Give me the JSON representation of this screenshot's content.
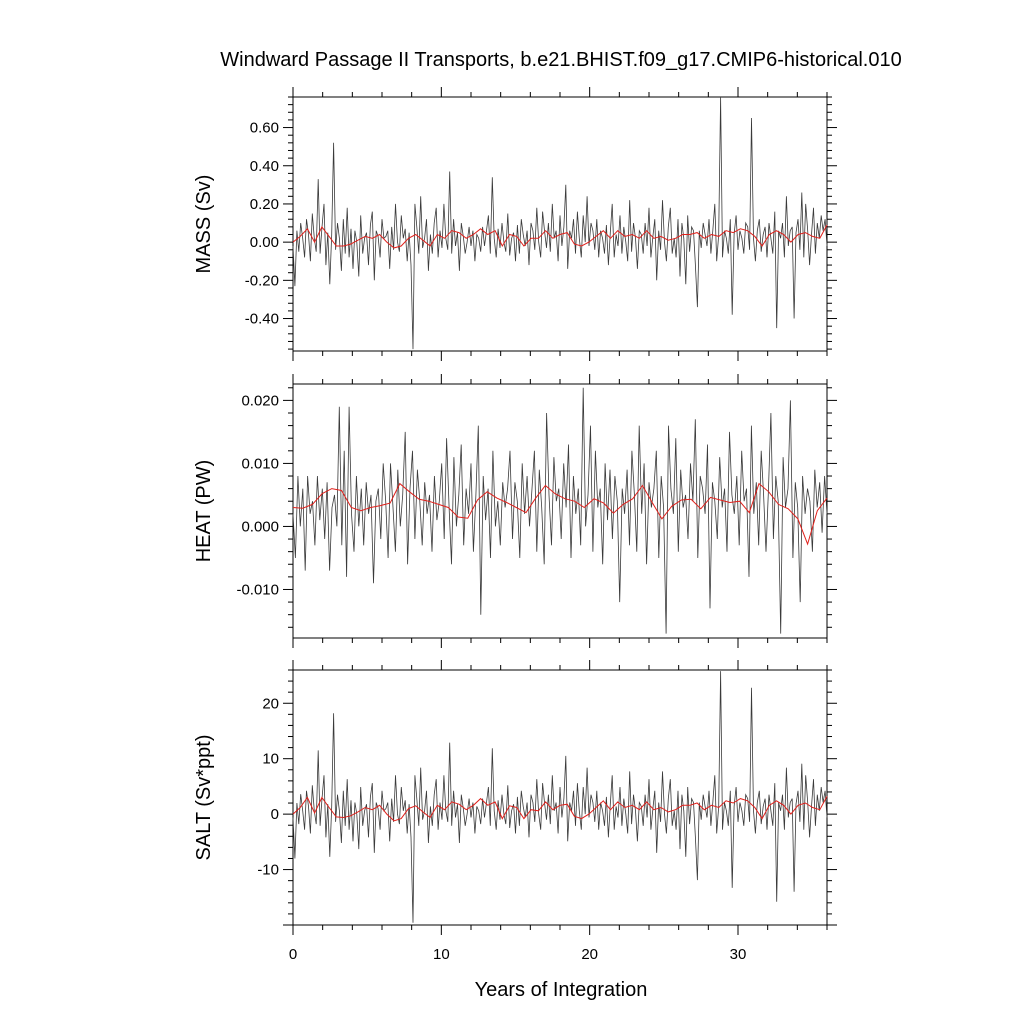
{
  "title": "Windward Passage II Transports, b.e21.BHIST.f09_g17.CMIP6-historical.010",
  "xlabel": "Years of Integration",
  "colors": {
    "raw": "#3a3a3a",
    "annual": "#e0201b",
    "axis": "#000000"
  },
  "chart_data": [
    {
      "type": "line",
      "ylabel": "MASS (Sv)",
      "xlim": [
        0,
        36
      ],
      "ylim": [
        -0.57,
        0.76
      ],
      "x_ticks": [
        "0",
        "10",
        "20",
        "30"
      ],
      "y_ticks": [
        "0.60",
        "0.40",
        "0.20",
        "0.00",
        "-0.20",
        "-0.40"
      ],
      "raw": [
        -0.02,
        -0.23,
        0.06,
        -0.05,
        0.1,
        0.02,
        -0.08,
        0.12,
        0.04,
        -0.1,
        0.15,
        0.02,
        -0.05,
        0.33,
        -0.06,
        0.08,
        0.2,
        -0.12,
        0.05,
        -0.22,
        0.04,
        0.52,
        -0.04,
        0.1,
        0.02,
        -0.15,
        0.12,
        -0.06,
        0.18,
        -0.08,
        0.07,
        -0.14,
        0.06,
        0.0,
        -0.18,
        0.14,
        -0.06,
        0.02,
        0.05,
        -0.12,
        0.09,
        0.16,
        -0.2,
        0.06,
        0.03,
        -0.08,
        0.12,
        0.02,
        0.03,
        0.06,
        -0.14,
        0.08,
        -0.04,
        0.2,
        0.0,
        -0.05,
        0.14,
        0.02,
        0.07,
        -0.1,
        0.05,
        -0.12,
        -0.56,
        0.2,
        0.08,
        -0.06,
        0.24,
        -0.03,
        0.02,
        0.12,
        -0.15,
        0.04,
        -0.06,
        0.1,
        0.18,
        -0.08,
        0.06,
        -0.03,
        0.2,
        0.02,
        -0.04,
        0.37,
        -0.06,
        0.12,
        -0.02,
        0.05,
        -0.15,
        0.1,
        0.03,
        -0.06,
        0.0,
        0.08,
        -0.02,
        0.06,
        -0.1,
        0.04,
        0.02,
        -0.05,
        0.08,
        -0.02,
        0.06,
        0.14,
        -0.06,
        0.34,
        0.02,
        -0.08,
        0.07,
        -0.03,
        0.1,
        0.0,
        -0.05,
        0.15,
        -0.07,
        0.02,
        0.05,
        -0.1,
        0.09,
        -0.06,
        0.12,
        0.04,
        -0.02,
        0.06,
        -0.12,
        0.1,
        0.06,
        -0.04,
        0.18,
        0.0,
        -0.08,
        0.16,
        0.06,
        -0.03,
        0.1,
        -0.05,
        0.2,
        0.02,
        0.06,
        -0.1,
        0.14,
        -0.02,
        0.08,
        0.3,
        -0.14,
        0.06,
        0.02,
        0.12,
        -0.06,
        0.16,
        0.02,
        -0.08,
        0.14,
        0.0,
        0.24,
        -0.02,
        0.1,
        0.06,
        -0.04,
        0.12,
        -0.08,
        0.06,
        0.02,
        -0.06,
        0.09,
        -0.12,
        0.05,
        0.2,
        -0.08,
        0.04,
        -0.02,
        0.14,
        -0.06,
        0.08,
        0.0,
        -0.1,
        0.22,
        -0.05,
        0.1,
        0.02,
        -0.14,
        0.06,
        0.04,
        -0.06,
        0.1,
        -0.02,
        0.18,
        -0.08,
        0.03,
        0.12,
        -0.2,
        0.06,
        -0.04,
        0.22,
        0.0,
        -0.1,
        0.08,
        0.18,
        -0.06,
        0.02,
        -0.08,
        0.12,
        -0.18,
        0.1,
        0.02,
        -0.22,
        0.14,
        -0.05,
        0.08,
        0.06,
        -0.12,
        -0.34,
        0.06,
        -0.03,
        0.1,
        0.04,
        -0.02,
        0.12,
        -0.06,
        0.06,
        0.2,
        -0.1,
        0.04,
        0.76,
        -0.08,
        0.06,
        0.02,
        -0.06,
        0.12,
        -0.38,
        0.04,
        0.14,
        -0.04,
        0.06,
        0.02,
        -0.06,
        0.1,
        0.08,
        -0.04,
        0.65,
        0.02,
        -0.1,
        0.06,
        0.12,
        -0.05,
        0.04,
        0.08,
        -0.08,
        0.1,
        0.02,
        -0.06,
        0.16,
        -0.45,
        0.06,
        0.02,
        0.1,
        -0.08,
        0.24,
        -0.02,
        0.06,
        0.08,
        -0.4,
        0.05,
        0.12,
        -0.04,
        0.26,
        -0.08,
        0.2,
        0.06,
        -0.12,
        0.04,
        0.18,
        -0.06,
        0.1,
        0.02,
        0.14,
        0.06,
        0.12,
        -0.02
      ],
      "annual": [
        0.0,
        0.03,
        0.07,
        0.0,
        0.08,
        0.03,
        -0.02,
        -0.02,
        -0.01,
        0.01,
        0.03,
        0.02,
        0.04,
        0.0,
        -0.03,
        -0.02,
        0.02,
        0.04,
        0.01,
        -0.02,
        0.04,
        0.02,
        0.06,
        0.05,
        0.02,
        0.04,
        0.07,
        0.04,
        0.06,
        -0.02,
        0.04,
        0.03,
        -0.02,
        0.02,
        0.02,
        0.06,
        0.02,
        0.04,
        0.05,
        -0.01,
        -0.02,
        0.0,
        0.03,
        0.06,
        0.02,
        0.06,
        0.03,
        0.04,
        0.02,
        0.06,
        0.02,
        0.03,
        0.01,
        0.02,
        0.04,
        0.04,
        0.05,
        0.02,
        0.04,
        0.03,
        0.06,
        0.05,
        0.07,
        0.06,
        0.03,
        -0.02,
        0.04,
        0.06,
        0.04,
        0.0,
        0.04,
        0.05,
        0.03,
        0.02,
        0.09
      ]
    },
    {
      "type": "line",
      "ylabel": "HEAT (PW)",
      "xlim": [
        0,
        36
      ],
      "ylim": [
        -0.0177,
        0.0226
      ],
      "x_ticks": [
        "0",
        "10",
        "20",
        "30"
      ],
      "y_ticks": [
        "0.020",
        "0.010",
        "0.000",
        "-0.010"
      ],
      "raw": [
        0.002,
        -0.005,
        0.008,
        0.0,
        0.006,
        -0.007,
        0.008,
        0.002,
        0.004,
        -0.003,
        0.008,
        0.001,
        0.006,
        -0.002,
        0.007,
        -0.007,
        0.003,
        0.005,
        0.0,
        0.019,
        -0.003,
        0.012,
        -0.008,
        0.019,
        0.002,
        -0.004,
        0.008,
        0.0,
        0.006,
        -0.003,
        0.007,
        0.002,
        0.005,
        -0.009,
        0.004,
        0.006,
        -0.002,
        0.01,
        0.004,
        -0.005,
        0.01,
        0.003,
        -0.004,
        0.009,
        0.0,
        0.005,
        0.015,
        -0.006,
        0.006,
        0.012,
        -0.002,
        0.009,
        0.004,
        -0.003,
        0.007,
        0.002,
        0.005,
        -0.004,
        0.008,
        0.001,
        0.004,
        0.01,
        -0.002,
        0.014,
        0.003,
        -0.006,
        0.011,
        0.0,
        0.005,
        0.013,
        -0.003,
        0.006,
        0.002,
        0.01,
        -0.004,
        0.005,
        0.016,
        -0.014,
        0.008,
        0.001,
        0.006,
        -0.005,
        0.012,
        0.0,
        0.004,
        -0.003,
        0.007,
        0.003,
        0.006,
        0.012,
        -0.002,
        0.007,
        0.004,
        -0.005,
        0.01,
        0.002,
        0.008,
        0.0,
        0.006,
        0.012,
        -0.004,
        0.009,
        0.003,
        -0.006,
        0.018,
        0.005,
        -0.003,
        0.011,
        0.004,
        0.006,
        -0.002,
        0.01,
        0.003,
        0.013,
        -0.005,
        0.008,
        0.002,
        0.006,
        -0.003,
        0.022,
        0.0,
        0.005,
        0.016,
        -0.004,
        0.012,
        0.003,
        0.006,
        -0.006,
        0.01,
        0.001,
        0.009,
        -0.002,
        0.008,
        0.004,
        -0.012,
        0.006,
        0.002,
        0.009,
        -0.003,
        0.012,
        0.005,
        -0.004,
        0.016,
        0.002,
        0.01,
        -0.006,
        0.007,
        0.003,
        0.006,
        0.012,
        -0.005,
        0.008,
        0.003,
        -0.017,
        0.016,
        0.006,
        0.002,
        0.014,
        -0.004,
        0.009,
        0.003,
        0.005,
        -0.002,
        0.01,
        0.004,
        0.017,
        -0.005,
        0.008,
        0.006,
        0.002,
        0.013,
        -0.013,
        0.007,
        0.004,
        -0.002,
        0.011,
        0.003,
        0.006,
        -0.004,
        0.015,
        0.005,
        0.002,
        0.008,
        -0.003,
        0.012,
        0.004,
        0.006,
        -0.008,
        0.016,
        0.002,
        0.007,
        -0.003,
        0.012,
        0.005,
        -0.004,
        0.006,
        0.018,
        -0.002,
        0.008,
        0.004,
        -0.017,
        0.011,
        0.003,
        0.006,
        0.02,
        -0.005,
        0.007,
        0.003,
        -0.012,
        0.008,
        0.002,
        0.006,
        0.004,
        -0.004,
        0.009,
        0.003,
        0.007,
        -0.001,
        0.008,
        0.002
      ],
      "annual": [
        0.003,
        0.0029,
        0.0035,
        0.0052,
        0.006,
        0.0057,
        0.003,
        0.0025,
        0.003,
        0.0033,
        0.0037,
        0.0068,
        0.0055,
        0.0043,
        0.004,
        0.0035,
        0.003,
        0.0015,
        0.0013,
        0.0042,
        0.0055,
        0.0045,
        0.0038,
        0.003,
        0.0022,
        0.0045,
        0.0065,
        0.0052,
        0.0044,
        0.004,
        0.003,
        0.0044,
        0.0037,
        0.0021,
        0.0035,
        0.0044,
        0.0065,
        0.0038,
        0.0012,
        0.0032,
        0.0042,
        0.0043,
        0.0028,
        0.0046,
        0.0042,
        0.0038,
        0.004,
        0.0022,
        0.0068,
        0.0055,
        0.0035,
        0.0028,
        0.0012,
        -0.0028,
        0.0025,
        0.0045
      ]
    },
    {
      "type": "line",
      "ylabel": "SALT (Sv*ppt)",
      "xlim": [
        0,
        36
      ],
      "ylim": [
        -20,
        26
      ],
      "x_ticks": [
        "0",
        "10",
        "20",
        "30"
      ],
      "y_ticks": [
        "20",
        "10",
        "0",
        "-10"
      ],
      "raw": [
        -0.6,
        -8.0,
        2.0,
        -1.8,
        3.6,
        0.6,
        -2.8,
        4.2,
        1.4,
        -3.5,
        5.2,
        0.6,
        -1.8,
        11.5,
        -2.1,
        2.8,
        7.0,
        -4.2,
        1.8,
        -7.7,
        1.4,
        18.2,
        -1.4,
        3.5,
        0.6,
        -5.2,
        4.2,
        -2.1,
        6.3,
        -2.8,
        2.5,
        -4.9,
        2.1,
        0.0,
        -6.3,
        4.9,
        -2.1,
        0.6,
        1.8,
        -4.2,
        3.1,
        5.6,
        -7.0,
        2.1,
        1.0,
        -2.8,
        4.2,
        0.6,
        1.0,
        2.1,
        -4.9,
        2.8,
        -1.4,
        7.0,
        0.0,
        -1.8,
        4.9,
        0.6,
        2.5,
        -3.5,
        1.8,
        -4.2,
        -19.6,
        7.0,
        2.8,
        -2.1,
        8.4,
        -1.0,
        0.6,
        4.2,
        -5.2,
        1.4,
        -2.1,
        3.5,
        6.3,
        -2.8,
        2.1,
        -1.0,
        7.0,
        0.6,
        -1.4,
        12.9,
        -2.1,
        4.2,
        -0.6,
        1.8,
        -5.2,
        3.5,
        1.0,
        -2.1,
        0.0,
        2.8,
        -0.6,
        2.1,
        -3.5,
        1.4,
        0.6,
        -1.8,
        2.8,
        -0.6,
        2.1,
        4.9,
        -2.1,
        11.9,
        0.6,
        -2.8,
        2.5,
        -1.0,
        3.5,
        0.0,
        -1.8,
        5.2,
        -2.5,
        0.6,
        1.8,
        -3.5,
        3.1,
        -2.1,
        4.2,
        1.4,
        -0.6,
        2.1,
        -4.2,
        3.5,
        2.1,
        -1.4,
        6.3,
        0.0,
        -2.8,
        5.6,
        2.1,
        -1.0,
        3.5,
        -1.8,
        7.0,
        0.6,
        2.1,
        -3.5,
        4.9,
        -0.6,
        2.8,
        10.5,
        -4.9,
        2.1,
        0.6,
        4.2,
        -2.1,
        5.6,
        0.6,
        -2.8,
        4.9,
        0.0,
        8.4,
        -0.6,
        3.5,
        2.1,
        -1.4,
        4.2,
        -2.8,
        2.1,
        0.6,
        -2.1,
        3.1,
        -4.2,
        1.8,
        7.0,
        -2.8,
        1.4,
        -0.6,
        4.9,
        -2.1,
        2.8,
        0.0,
        -3.5,
        7.7,
        -1.8,
        3.5,
        0.6,
        -4.9,
        2.1,
        1.4,
        -2.1,
        3.5,
        -0.6,
        6.3,
        -2.8,
        1.0,
        4.2,
        -7.0,
        2.1,
        -1.4,
        7.7,
        0.0,
        -3.5,
        2.8,
        6.3,
        -2.1,
        0.6,
        -2.8,
        4.2,
        -6.3,
        3.5,
        0.6,
        -7.7,
        4.9,
        -1.8,
        2.8,
        2.1,
        -4.2,
        -11.9,
        2.1,
        -1.0,
        3.5,
        1.4,
        -0.6,
        4.2,
        -2.1,
        2.1,
        7.0,
        -3.5,
        1.4,
        25.8,
        -2.8,
        2.1,
        0.6,
        -2.1,
        4.2,
        -13.3,
        1.4,
        4.9,
        -1.4,
        2.1,
        0.6,
        -2.1,
        3.5,
        2.8,
        -1.4,
        22.8,
        0.6,
        -3.5,
        2.1,
        4.2,
        -1.8,
        1.4,
        2.8,
        -2.8,
        3.5,
        0.6,
        -2.1,
        5.6,
        -15.8,
        2.1,
        0.6,
        3.5,
        -2.8,
        8.4,
        -0.6,
        2.1,
        2.8,
        -14.0,
        1.8,
        4.2,
        -1.4,
        9.1,
        -2.8,
        7.0,
        2.1,
        -4.2,
        1.4,
        6.3,
        -2.1,
        3.5,
        0.6,
        4.9,
        2.1,
        4.2,
        -0.6
      ],
      "annual": [
        0.0,
        1.2,
        3.0,
        0.2,
        3.0,
        1.2,
        -0.5,
        -0.6,
        -0.3,
        0.4,
        1.2,
        0.8,
        1.6,
        0.0,
        -1.2,
        -0.8,
        1.0,
        1.5,
        0.4,
        -0.6,
        1.6,
        0.8,
        2.2,
        1.8,
        0.8,
        1.6,
        2.8,
        1.6,
        2.2,
        -0.8,
        1.5,
        1.2,
        -0.8,
        0.8,
        0.6,
        2.2,
        0.8,
        1.6,
        1.8,
        -0.4,
        -0.8,
        0.0,
        1.2,
        2.4,
        0.8,
        2.2,
        1.2,
        1.6,
        0.8,
        2.2,
        0.8,
        1.2,
        0.4,
        0.8,
        1.6,
        1.6,
        2.0,
        0.8,
        1.6,
        1.2,
        2.4,
        2.0,
        2.8,
        2.4,
        1.2,
        -0.8,
        1.6,
        2.4,
        1.6,
        0.0,
        1.6,
        2.0,
        1.2,
        0.8,
        3.2
      ]
    }
  ]
}
